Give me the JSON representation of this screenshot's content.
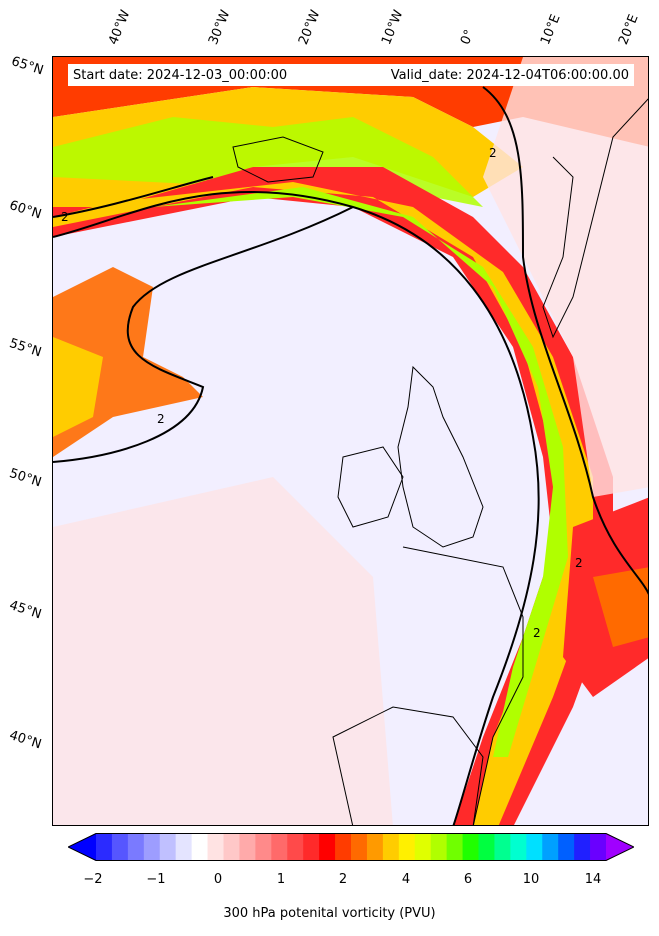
{
  "header": {
    "start_date": "Start date: 2024-12-03_00:00:00",
    "valid_date": "Valid_date: 2024-12-04T06:00:00.00"
  },
  "lon_labels": [
    "40°W",
    "30°W",
    "20°W",
    "10°W",
    "0°",
    "10°E",
    "20°E"
  ],
  "lat_labels": [
    "65°N",
    "60°N",
    "55°N",
    "50°N",
    "45°N",
    "40°N"
  ],
  "contour_label": "2",
  "colorbar": {
    "ticks": [
      "−2",
      "−1",
      "0",
      "1",
      "2",
      "4",
      "6",
      "8",
      "10",
      "14"
    ],
    "label": "300 hPa potenital vorticity (PVU)",
    "colors": [
      "#0000ff",
      "#2b2bff",
      "#5656ff",
      "#7a7aff",
      "#9d9dff",
      "#c0c0ff",
      "#e4e4ff",
      "#ffffff",
      "#ffe3e3",
      "#ffc8c8",
      "#ffaaaa",
      "#ff8a8a",
      "#ff6a6a",
      "#ff4a4a",
      "#ff2a2a",
      "#ff0000",
      "#ff3c00",
      "#ff6a00",
      "#ff9a00",
      "#ffcc00",
      "#fff000",
      "#e0ff00",
      "#b0ff00",
      "#70ff00",
      "#20ff00",
      "#00ff40",
      "#00ff90",
      "#00ffd0",
      "#00e0ff",
      "#00a0ff",
      "#0060ff",
      "#2020ff",
      "#6a00ff",
      "#a000ff"
    ]
  }
}
